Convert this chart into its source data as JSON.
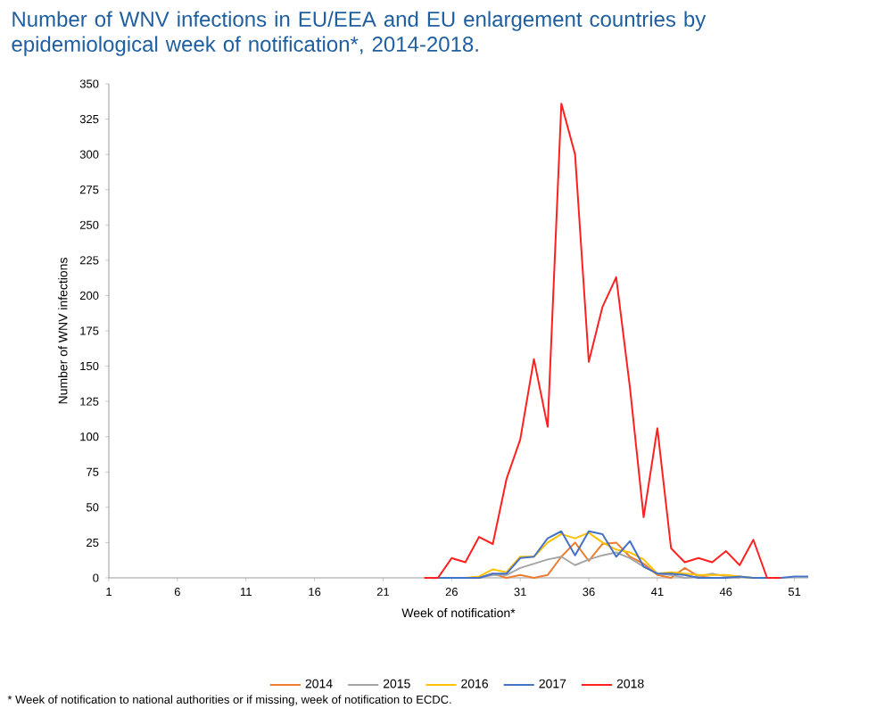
{
  "chart_data": {
    "type": "line",
    "title": "Number of WNV infections in EU/EEA and EU enlargement countries by epidemiological week of notification*, 2014-2018.",
    "xlabel": "Week of notification*",
    "ylabel": "Number of WNV infections",
    "xlim": [
      1,
      52
    ],
    "xticks": [
      1,
      6,
      11,
      16,
      21,
      26,
      31,
      36,
      41,
      46,
      51
    ],
    "ylim": [
      0,
      350
    ],
    "yticks": [
      0,
      25,
      50,
      75,
      100,
      125,
      150,
      175,
      200,
      225,
      250,
      275,
      300,
      325,
      350
    ],
    "legend": "bottom",
    "grid": false,
    "marker": "none",
    "line_style": "solid",
    "annotations": [
      "* Week of notification to national authorities or if missing, week of notification to ECDC."
    ],
    "series": [
      {
        "name": "2014",
        "color": "#ed7d31",
        "x": [
          28,
          29,
          30,
          31,
          32,
          33,
          34,
          35,
          36,
          37,
          38,
          39,
          40,
          41,
          42,
          43,
          44,
          45,
          46
        ],
        "values": [
          0,
          3,
          0,
          2,
          0,
          2,
          15,
          25,
          12,
          24,
          25,
          15,
          10,
          2,
          0,
          7,
          1,
          0,
          0
        ]
      },
      {
        "name": "2015",
        "color": "#a5a5a5",
        "x": [
          28,
          29,
          30,
          31,
          32,
          33,
          34,
          35,
          36,
          37,
          38,
          39,
          40,
          41,
          42,
          43,
          44,
          45,
          46,
          47
        ],
        "values": [
          0,
          2,
          2,
          7,
          10,
          13,
          15,
          9,
          13,
          16,
          18,
          14,
          8,
          3,
          2,
          0,
          1,
          3,
          1,
          0
        ]
      },
      {
        "name": "2016",
        "color": "#ffc000",
        "x": [
          27,
          28,
          29,
          30,
          31,
          32,
          33,
          34,
          35,
          36,
          37,
          38,
          39,
          40,
          41,
          42,
          43,
          44,
          45,
          46,
          47,
          48
        ],
        "values": [
          0,
          1,
          6,
          4,
          15,
          15,
          25,
          31,
          28,
          32,
          25,
          20,
          18,
          13,
          3,
          4,
          3,
          2,
          2,
          2,
          1,
          0
        ]
      },
      {
        "name": "2017",
        "color": "#4472c4",
        "x": [
          25,
          26,
          27,
          28,
          29,
          30,
          31,
          32,
          33,
          34,
          35,
          36,
          37,
          38,
          39,
          40,
          41,
          42,
          43,
          44,
          45,
          46,
          47,
          48,
          49,
          50,
          51,
          52
        ],
        "values": [
          0,
          0,
          0,
          0,
          3,
          3,
          14,
          15,
          28,
          33,
          16,
          33,
          31,
          15,
          26,
          8,
          3,
          3,
          2,
          0,
          0,
          0,
          1,
          0,
          0,
          0,
          1,
          1
        ]
      },
      {
        "name": "2018",
        "color": "#ff2020",
        "x": [
          24,
          25,
          26,
          27,
          28,
          29,
          30,
          31,
          32,
          33,
          34,
          35,
          36,
          37,
          38,
          39,
          40,
          41,
          42,
          43,
          44,
          45,
          46,
          47,
          48,
          49,
          50
        ],
        "values": [
          0,
          0,
          14,
          11,
          29,
          24,
          70,
          98,
          155,
          107,
          336,
          300,
          153,
          192,
          213,
          135,
          43,
          106,
          21,
          11,
          14,
          11,
          19,
          9,
          27,
          0,
          0
        ]
      }
    ]
  }
}
